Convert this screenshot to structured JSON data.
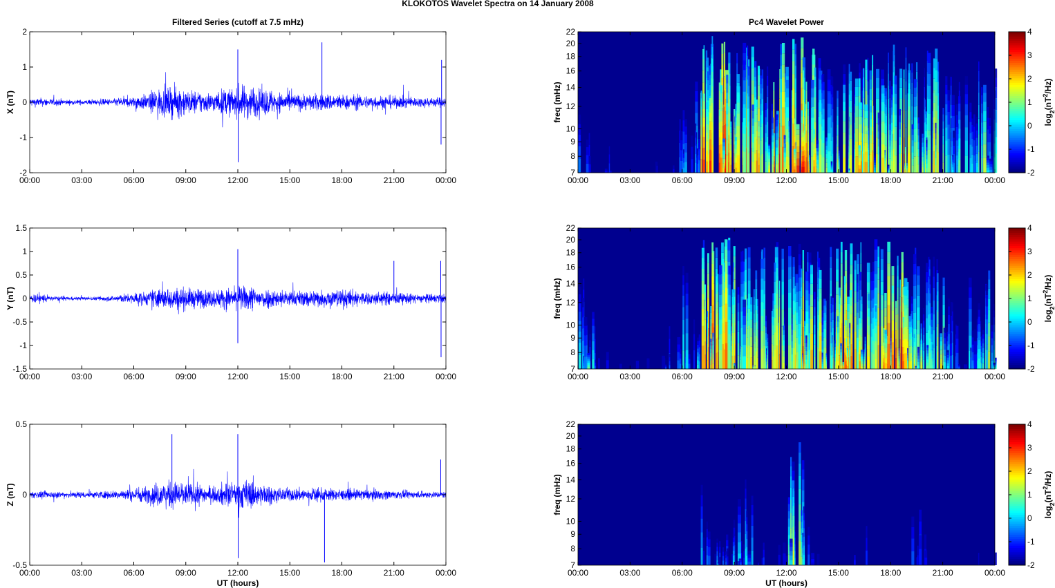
{
  "title": "KLOKOTOS Wavelet Spectra on 14 January   2008",
  "chart_data": [
    {
      "type": "line",
      "title": "Filtered Series (cutoff at 7.5 mHz)",
      "ylabel": "X (nT)",
      "xlabel": "",
      "ylim": [
        -2,
        2
      ],
      "yticks": [
        "-2",
        "-1",
        "0",
        "1",
        "2"
      ],
      "xticks": [
        "00:00",
        "03:00",
        "06:00",
        "09:00",
        "12:00",
        "15:00",
        "18:00",
        "21:00",
        "00:00"
      ],
      "color": "#0000ff",
      "envelope_hourly": [
        0.25,
        0.2,
        0.15,
        0.15,
        0.2,
        0.3,
        0.45,
        0.8,
        0.9,
        0.7,
        0.6,
        0.8,
        1.0,
        0.8,
        0.6,
        0.5,
        0.5,
        0.5,
        0.45,
        0.4,
        0.4,
        0.35,
        0.3,
        0.3
      ],
      "spikes": [
        {
          "t": 12.0,
          "v": 1.5
        },
        {
          "t": 12.02,
          "v": -1.7
        },
        {
          "t": 16.85,
          "v": 1.7
        },
        {
          "t": 23.75,
          "v": 1.2
        },
        {
          "t": 23.72,
          "v": -1.2
        }
      ]
    },
    {
      "type": "line",
      "ylabel": "Y (nT)",
      "xlabel": "",
      "ylim": [
        -1.5,
        1.5
      ],
      "yticks": [
        "-1.5",
        "-1",
        "-0.5",
        "0",
        "0.5",
        "1",
        "1.5"
      ],
      "xticks": [
        "00:00",
        "03:00",
        "06:00",
        "09:00",
        "12:00",
        "15:00",
        "18:00",
        "21:00",
        "00:00"
      ],
      "color": "#0000ff",
      "envelope_hourly": [
        0.2,
        0.1,
        0.08,
        0.08,
        0.12,
        0.2,
        0.3,
        0.45,
        0.5,
        0.45,
        0.4,
        0.45,
        0.55,
        0.45,
        0.4,
        0.35,
        0.4,
        0.4,
        0.4,
        0.3,
        0.3,
        0.25,
        0.2,
        0.2
      ],
      "spikes": [
        {
          "t": 12.0,
          "v": 1.05
        },
        {
          "t": 12.0,
          "v": -0.95
        },
        {
          "t": 23.7,
          "v": 0.8
        },
        {
          "t": 23.72,
          "v": -1.25
        },
        {
          "t": 21.0,
          "v": 0.8
        }
      ]
    },
    {
      "type": "line",
      "ylabel": "Z (nT)",
      "xlabel": "UT (hours)",
      "ylim": [
        -0.5,
        0.5
      ],
      "yticks": [
        "-0.5",
        "0",
        "0.5"
      ],
      "xticks": [
        "00:00",
        "03:00",
        "06:00",
        "09:00",
        "12:00",
        "15:00",
        "18:00",
        "21:00",
        "00:00"
      ],
      "color": "#0000ff",
      "envelope_hourly": [
        0.05,
        0.05,
        0.05,
        0.05,
        0.06,
        0.08,
        0.12,
        0.18,
        0.2,
        0.16,
        0.12,
        0.18,
        0.22,
        0.15,
        0.1,
        0.1,
        0.1,
        0.09,
        0.08,
        0.08,
        0.07,
        0.06,
        0.05,
        0.05
      ],
      "spikes": [
        {
          "t": 12.0,
          "v": 0.43
        },
        {
          "t": 12.02,
          "v": -0.45
        },
        {
          "t": 8.2,
          "v": 0.43
        },
        {
          "t": 17.0,
          "v": -0.48
        },
        {
          "t": 23.7,
          "v": 0.25
        }
      ]
    },
    {
      "type": "heatmap",
      "title": "Pc4 Wavelet Power",
      "ylabel": "freq (mHz)",
      "xlabel": "",
      "ylim": [
        7,
        22
      ],
      "yscale": "log",
      "yticks": [
        7,
        8,
        9,
        10,
        12,
        14,
        16,
        18,
        20,
        22
      ],
      "xticks": [
        "00:00",
        "03:00",
        "06:00",
        "09:00",
        "12:00",
        "15:00",
        "18:00",
        "21:00",
        "00:00"
      ],
      "colorbar": {
        "label": "log2(nT2/Hz)",
        "range": [
          -2,
          4
        ],
        "ticks": [
          "-2",
          "-1",
          "0",
          "1",
          "2",
          "3",
          "4"
        ],
        "colormap": "jet"
      },
      "peak_power_hourly": [
        -0.5,
        -1,
        -1.5,
        -1.5,
        -1.5,
        -0.5,
        0.5,
        3.5,
        3.5,
        3,
        2.5,
        3,
        3.5,
        3,
        2,
        2,
        2.5,
        2,
        3,
        2,
        2.5,
        1,
        0.5,
        1.5
      ]
    },
    {
      "type": "heatmap",
      "ylabel": "freq (mHz)",
      "xlabel": "",
      "ylim": [
        7,
        22
      ],
      "yscale": "log",
      "yticks": [
        7,
        8,
        9,
        10,
        12,
        14,
        16,
        18,
        20,
        22
      ],
      "xticks": [
        "00:00",
        "03:00",
        "06:00",
        "09:00",
        "12:00",
        "15:00",
        "18:00",
        "21:00",
        "00:00"
      ],
      "colorbar": {
        "label": "log2(nT2/Hz)",
        "range": [
          -2,
          4
        ],
        "ticks": [
          "-2",
          "-1",
          "0",
          "1",
          "2",
          "3",
          "4"
        ],
        "colormap": "jet"
      },
      "peak_power_hourly": [
        1,
        -1,
        -1.5,
        -1.5,
        -1.5,
        -0.5,
        0.5,
        3,
        3,
        2,
        2,
        2.5,
        2.5,
        2.5,
        2,
        3,
        2.5,
        3,
        3,
        2,
        2,
        1,
        0.5,
        1.5
      ]
    },
    {
      "type": "heatmap",
      "ylabel": "freq (mHz)",
      "xlabel": "UT (hours)",
      "ylim": [
        7,
        22
      ],
      "yscale": "log",
      "yticks": [
        7,
        8,
        9,
        10,
        12,
        14,
        16,
        18,
        20,
        22
      ],
      "xticks": [
        "00:00",
        "03:00",
        "06:00",
        "09:00",
        "12:00",
        "15:00",
        "18:00",
        "21:00",
        "00:00"
      ],
      "colorbar": {
        "label": "log2(nT2/Hz)",
        "range": [
          -2,
          4
        ],
        "ticks": [
          "-2",
          "-1",
          "0",
          "1",
          "2",
          "3",
          "4"
        ],
        "colormap": "jet"
      },
      "peak_power_hourly": [
        -2,
        -2,
        -2,
        -2,
        -2,
        -2,
        -1.5,
        0,
        0.5,
        0.5,
        -1,
        -1,
        2,
        -0.5,
        -1,
        -1,
        -1,
        -2,
        -2,
        -0.5,
        -2,
        -2,
        -2,
        -1.5
      ]
    }
  ],
  "colorbar_label_main": "log",
  "colorbar_label_sub": "2",
  "colorbar_label_rest1": "(nT",
  "colorbar_label_sup": "2",
  "colorbar_label_rest2": "/Hz)"
}
